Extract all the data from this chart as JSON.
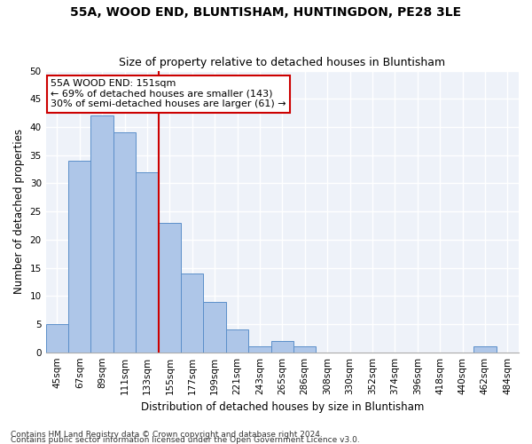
{
  "title1": "55A, WOOD END, BLUNTISHAM, HUNTINGDON, PE28 3LE",
  "title2": "Size of property relative to detached houses in Bluntisham",
  "xlabel": "Distribution of detached houses by size in Bluntisham",
  "ylabel": "Number of detached properties",
  "categories": [
    "45sqm",
    "67sqm",
    "89sqm",
    "111sqm",
    "133sqm",
    "155sqm",
    "177sqm",
    "199sqm",
    "221sqm",
    "243sqm",
    "265sqm",
    "286sqm",
    "308sqm",
    "330sqm",
    "352sqm",
    "374sqm",
    "396sqm",
    "418sqm",
    "440sqm",
    "462sqm",
    "484sqm"
  ],
  "values": [
    5,
    34,
    42,
    39,
    32,
    23,
    14,
    9,
    4,
    1,
    2,
    1,
    0,
    0,
    0,
    0,
    0,
    0,
    0,
    1,
    0
  ],
  "bar_color": "#aec6e8",
  "bar_edge_color": "#5b8fc9",
  "vline_color": "#cc0000",
  "annotation_line1": "55A WOOD END: 151sqm",
  "annotation_line2": "← 69% of detached houses are smaller (143)",
  "annotation_line3": "30% of semi-detached houses are larger (61) →",
  "annotation_box_color": "#cc0000",
  "ylim": [
    0,
    50
  ],
  "yticks": [
    0,
    5,
    10,
    15,
    20,
    25,
    30,
    35,
    40,
    45,
    50
  ],
  "footer1": "Contains HM Land Registry data © Crown copyright and database right 2024.",
  "footer2": "Contains public sector information licensed under the Open Government Licence v3.0.",
  "bg_color": "#eef2f9",
  "grid_color": "#ffffff",
  "fig_bg_color": "#ffffff",
  "title1_fontsize": 10,
  "title2_fontsize": 9,
  "xlabel_fontsize": 8.5,
  "ylabel_fontsize": 8.5,
  "tick_fontsize": 7.5,
  "annotation_fontsize": 8,
  "footer_fontsize": 6.5
}
